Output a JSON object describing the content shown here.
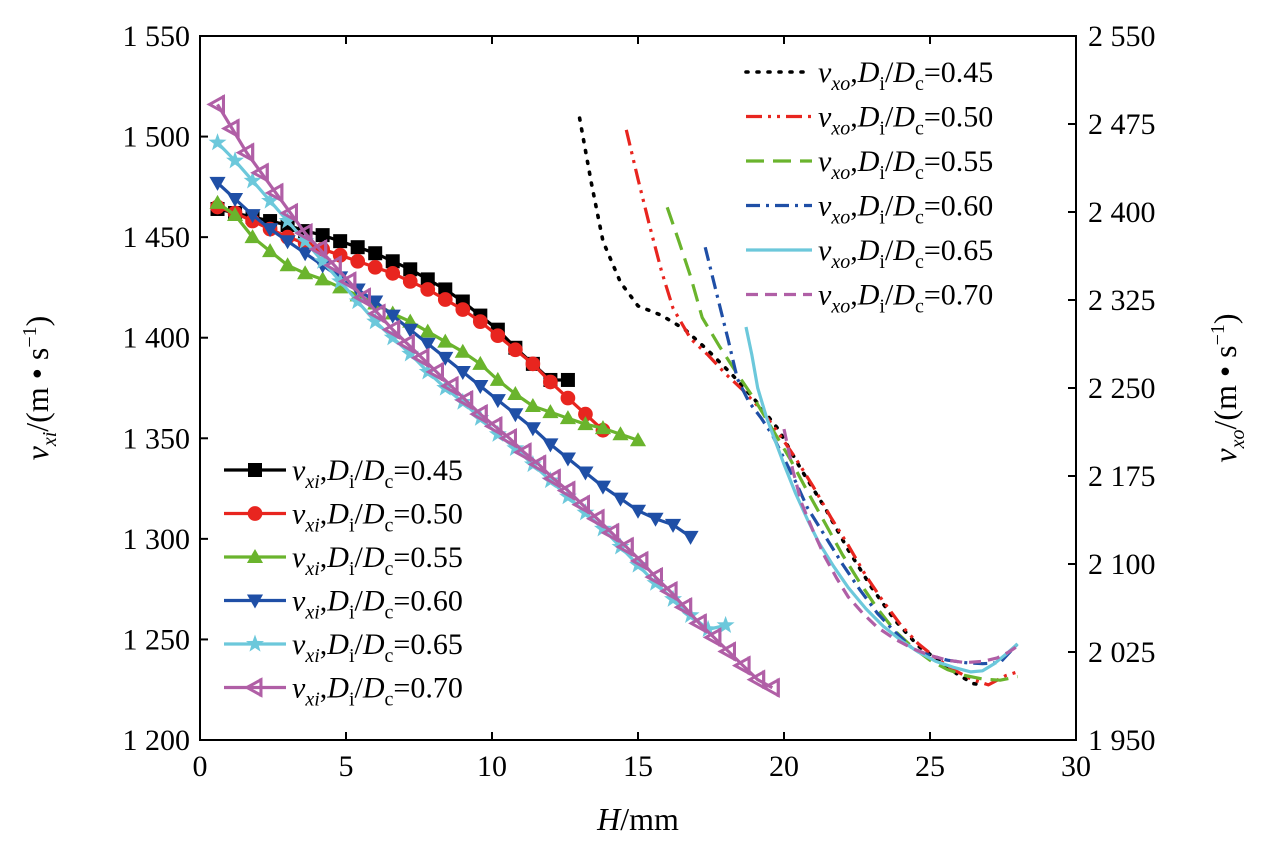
{
  "chart_data": {
    "type": "line",
    "x_axis": {
      "label_var": "H",
      "label_unit": "/mm",
      "range": [
        0,
        30
      ],
      "ticks": [
        0,
        5,
        10,
        15,
        20,
        25,
        30
      ],
      "tick_labels": [
        "0",
        "5",
        "10",
        "15",
        "20",
        "25",
        "30"
      ]
    },
    "y_left": {
      "label_var": "v",
      "label_sub": "xi",
      "label_unit": "/(m • s",
      "label_sup": "−1",
      "label_close": ")",
      "range": [
        1200,
        1550
      ],
      "ticks": [
        1200,
        1250,
        1300,
        1350,
        1400,
        1450,
        1500,
        1550
      ],
      "tick_labels": [
        "1 200",
        "1 250",
        "1 300",
        "1 350",
        "1 400",
        "1 450",
        "1 500",
        "1 550"
      ]
    },
    "y_right": {
      "label_var": "v",
      "label_sub": "xo",
      "label_unit": "/(m • s",
      "label_sup": "−1",
      "label_close": ")",
      "range": [
        1950,
        2550
      ],
      "ticks": [
        1950,
        2025,
        2100,
        2175,
        2250,
        2325,
        2400,
        2475,
        2550
      ],
      "tick_labels": [
        "1 950",
        "2 025",
        "2 100",
        "2 175",
        "2 250",
        "2 325",
        "2 400",
        "2 475",
        "2 550"
      ]
    },
    "legend_inner": {
      "position": "bottom-left",
      "var": "v",
      "sub": "xi",
      "mid": ",",
      "d1": "D",
      "d1_sub": "i",
      "slash": "/",
      "d2": "D",
      "d2_sub": "c",
      "eq": "="
    },
    "legend_outer": {
      "position": "top-right",
      "var": "v",
      "sub": "xo",
      "mid": ",",
      "d1": "D",
      "d1_sub": "i",
      "slash": "/",
      "d2": "D",
      "d2_sub": "c",
      "eq": "="
    },
    "series_inner": [
      {
        "ratio": "0.45",
        "color": "#000000",
        "marker": "square",
        "x": [
          0.6,
          1.2,
          1.8,
          2.4,
          3.0,
          3.6,
          4.2,
          4.8,
          5.4,
          6.0,
          6.6,
          7.2,
          7.8,
          8.4,
          9.0,
          9.6,
          10.2,
          10.8,
          11.4,
          12.0,
          12.6
        ],
        "y": [
          1464,
          1462,
          1460,
          1458,
          1456,
          1453,
          1451,
          1448,
          1445,
          1442,
          1438,
          1434,
          1429,
          1424,
          1418,
          1411,
          1404,
          1395,
          1387,
          1379,
          1379
        ]
      },
      {
        "ratio": "0.50",
        "color": "#e8251f",
        "marker": "circle",
        "x": [
          0.6,
          1.2,
          1.8,
          2.4,
          3.0,
          3.6,
          4.2,
          4.8,
          5.4,
          6.0,
          6.6,
          7.2,
          7.8,
          8.4,
          9.0,
          9.6,
          10.2,
          10.8,
          11.4,
          12.0,
          12.6,
          13.2,
          13.8
        ],
        "y": [
          1465,
          1462,
          1458,
          1454,
          1450,
          1447,
          1444,
          1441,
          1438,
          1435,
          1432,
          1428,
          1424,
          1419,
          1414,
          1408,
          1401,
          1394,
          1387,
          1378,
          1370,
          1362,
          1354
        ]
      },
      {
        "ratio": "0.55",
        "color": "#6ab42d",
        "marker": "triangle-up",
        "x": [
          0.6,
          1.2,
          1.8,
          2.4,
          3.0,
          3.6,
          4.2,
          4.8,
          5.4,
          6.0,
          6.6,
          7.2,
          7.8,
          8.4,
          9.0,
          9.6,
          10.2,
          10.8,
          11.4,
          12.0,
          12.6,
          13.2,
          13.8,
          14.4,
          15.0
        ],
        "y": [
          1467,
          1461,
          1450,
          1443,
          1436,
          1432,
          1429,
          1425,
          1421,
          1417,
          1412,
          1408,
          1403,
          1398,
          1393,
          1387,
          1379,
          1372,
          1366,
          1363,
          1360,
          1357,
          1355,
          1352,
          1349
        ]
      },
      {
        "ratio": "0.60",
        "color": "#1f4fa6",
        "marker": "triangle-down",
        "x": [
          0.6,
          1.2,
          1.8,
          2.4,
          3.0,
          3.6,
          4.2,
          4.8,
          5.4,
          6.0,
          6.6,
          7.2,
          7.8,
          8.4,
          9.0,
          9.6,
          10.2,
          10.8,
          11.4,
          12.0,
          12.6,
          13.2,
          13.8,
          14.4,
          15.0,
          15.6,
          16.2,
          16.8
        ],
        "y": [
          1477,
          1469,
          1461,
          1454,
          1448,
          1442,
          1436,
          1430,
          1424,
          1418,
          1411,
          1404,
          1397,
          1390,
          1383,
          1376,
          1369,
          1362,
          1355,
          1347,
          1340,
          1333,
          1326,
          1320,
          1314,
          1310,
          1307,
          1301
        ]
      },
      {
        "ratio": "0.65",
        "color": "#6cc8db",
        "marker": "star",
        "x": [
          0.6,
          1.2,
          1.8,
          2.4,
          3.0,
          3.6,
          4.2,
          4.8,
          5.4,
          6.0,
          6.6,
          7.2,
          7.8,
          8.4,
          9.0,
          9.6,
          10.2,
          10.8,
          11.4,
          12.0,
          12.6,
          13.2,
          13.8,
          14.4,
          15.0,
          15.6,
          16.2,
          16.8,
          17.4,
          18.0
        ],
        "y": [
          1497,
          1488,
          1478,
          1468,
          1458,
          1448,
          1438,
          1428,
          1418,
          1408,
          1400,
          1392,
          1383,
          1375,
          1368,
          1360,
          1352,
          1345,
          1337,
          1329,
          1321,
          1313,
          1305,
          1296,
          1287,
          1278,
          1270,
          1262,
          1255,
          1257
        ]
      },
      {
        "ratio": "0.70",
        "color": "#b05fa6",
        "marker": "tri-left",
        "x": [
          0.6,
          1.1,
          1.6,
          2.1,
          2.6,
          3.1,
          3.6,
          4.1,
          4.6,
          5.1,
          5.6,
          6.1,
          6.6,
          7.1,
          7.6,
          8.1,
          8.6,
          9.1,
          9.6,
          10.1,
          10.6,
          11.1,
          11.6,
          12.1,
          12.6,
          13.1,
          13.6,
          14.1,
          14.6,
          15.1,
          15.6,
          16.1,
          16.6,
          17.1,
          17.6,
          18.1,
          18.6,
          19.1,
          19.6
        ],
        "y": [
          1516,
          1504,
          1492,
          1482,
          1472,
          1462,
          1452,
          1444,
          1436,
          1428,
          1420,
          1412,
          1404,
          1397,
          1390,
          1383,
          1376,
          1369,
          1362,
          1356,
          1350,
          1343,
          1337,
          1330,
          1324,
          1317,
          1310,
          1303,
          1296,
          1289,
          1281,
          1274,
          1266,
          1258,
          1251,
          1244,
          1237,
          1230,
          1226
        ]
      }
    ],
    "series_outer": [
      {
        "ratio": "0.45",
        "color": "#000000",
        "dash": "2 9",
        "x": [
          13.0,
          13.4,
          13.8,
          14.4,
          15.0,
          15.8,
          16.6,
          17.4,
          18.2,
          19.0,
          19.8,
          20.6,
          21.4,
          22.2,
          23.0,
          23.8,
          24.6,
          25.4,
          26.0,
          26.5,
          26.8
        ],
        "y": [
          2480,
          2425,
          2375,
          2340,
          2320,
          2312,
          2300,
          2282,
          2262,
          2240,
          2215,
          2180,
          2148,
          2112,
          2080,
          2052,
          2030,
          2016,
          2005,
          1998,
          1997
        ]
      },
      {
        "ratio": "0.50",
        "color": "#e8251f",
        "dash": "16 6 3 6 3 6",
        "x": [
          14.6,
          15.0,
          15.4,
          15.8,
          16.2,
          16.8,
          17.4,
          18.0,
          18.6,
          19.2,
          19.8,
          20.4,
          21.0,
          21.6,
          22.2,
          22.8,
          23.4,
          24.0,
          24.6,
          25.2,
          25.8,
          26.4,
          27.0,
          27.6,
          28.0
        ],
        "y": [
          2470,
          2428,
          2388,
          2350,
          2318,
          2292,
          2278,
          2262,
          2248,
          2232,
          2212,
          2190,
          2166,
          2140,
          2116,
          2090,
          2068,
          2048,
          2032,
          2020,
          2010,
          2002,
          1997,
          2005,
          2008
        ]
      },
      {
        "ratio": "0.55",
        "color": "#6ab42d",
        "dash": "18 9",
        "x": [
          16.0,
          16.4,
          16.8,
          17.2,
          17.8,
          18.4,
          19.0,
          19.6,
          20.2,
          20.8,
          21.4,
          22.0,
          22.6,
          23.2,
          23.8,
          24.4,
          25.0,
          25.6,
          26.2,
          26.8,
          27.4,
          28.0
        ],
        "y": [
          2404,
          2375,
          2345,
          2310,
          2285,
          2262,
          2240,
          2215,
          2190,
          2162,
          2135,
          2108,
          2084,
          2062,
          2043,
          2029,
          2018,
          2010,
          2005,
          2002,
          2001,
          2004
        ]
      },
      {
        "ratio": "0.60",
        "color": "#1f4fa6",
        "dash": "14 6 3 6",
        "x": [
          17.3,
          17.7,
          18.1,
          18.4,
          18.8,
          19.2,
          19.6,
          20.0,
          20.4,
          20.8,
          21.4,
          22.0,
          22.6,
          23.2,
          23.8,
          24.4,
          25.0,
          25.6,
          26.2,
          26.8,
          27.4,
          28.0
        ],
        "y": [
          2370,
          2330,
          2290,
          2258,
          2238,
          2225,
          2210,
          2190,
          2170,
          2148,
          2124,
          2100,
          2078,
          2058,
          2042,
          2028,
          2022,
          2018,
          2016,
          2015,
          2016,
          2032
        ]
      },
      {
        "ratio": "0.65",
        "color": "#6cc8db",
        "dash": "",
        "x": [
          18.7,
          18.9,
          19.1,
          19.4,
          19.7,
          20.0,
          20.4,
          20.8,
          21.2,
          21.7,
          22.2,
          22.8,
          23.4,
          24.0,
          24.6,
          25.2,
          25.8,
          26.4,
          26.8,
          27.2,
          27.6,
          28.0
        ],
        "y": [
          2302,
          2278,
          2250,
          2225,
          2205,
          2185,
          2160,
          2138,
          2118,
          2098,
          2080,
          2062,
          2047,
          2035,
          2025,
          2017,
          2012,
          2008,
          2009,
          2015,
          2023,
          2032
        ]
      },
      {
        "ratio": "0.70",
        "color": "#b05fa6",
        "dash": "12 7",
        "x": [
          20.0,
          20.3,
          20.6,
          21.0,
          21.4,
          21.8,
          22.2,
          22.7,
          23.2,
          23.8,
          24.4,
          25.0,
          25.6,
          26.2,
          26.8,
          27.3,
          27.7,
          28.0
        ],
        "y": [
          2215,
          2180,
          2152,
          2128,
          2106,
          2088,
          2072,
          2058,
          2046,
          2036,
          2028,
          2022,
          2018,
          2016,
          2017,
          2020,
          2025,
          2030
        ]
      }
    ]
  }
}
